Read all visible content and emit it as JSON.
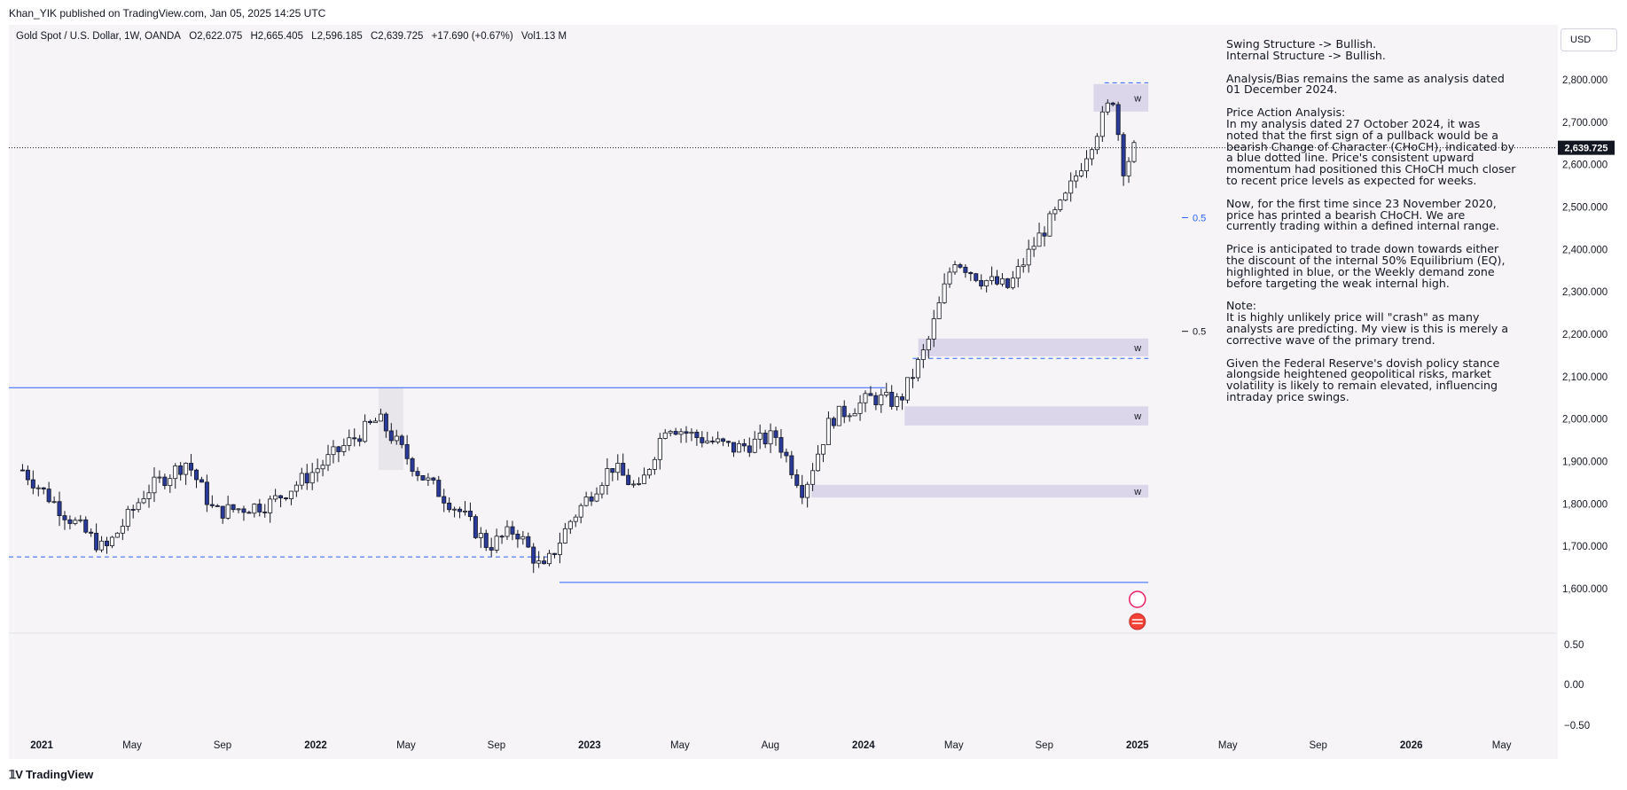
{
  "header": {
    "published": "Khan_YIK published on TradingView.com, Jan 05, 2025 14:25 UTC"
  },
  "symbol": {
    "name": "Gold Spot / U.S. Dollar, 1W, OANDA",
    "open": "O2,622.075",
    "high": "H2,665.405",
    "low": "L2,596.185",
    "close": "C2,639.725",
    "change": "+17.690 (+0.67%)",
    "volume": "Vol1.13 M"
  },
  "currency_button": "USD",
  "last_price_label": "2,639.725",
  "fib_labels": [
    "0.5",
    "0.5"
  ],
  "zone_label": "w",
  "notes": [
    "Swing Structure -> Bullish.\nInternal Structure -> Bullish.",
    "Analysis/Bias remains the same as analysis dated\n01 December 2024.",
    "Price Action Analysis:\nIn my analysis dated 27 October 2024, it was\nnoted that the first sign of a pullback would be a\nbearish Change of Character (CHoCH), indicated by\na blue dotted line. Price's consistent upward\nmomentum had positioned this CHoCH much closer\nto recent price levels as expected for weeks.",
    "Now, for the first time since 23 November 2020,\nprice has printed a bearish CHoCH. We are\ncurrently trading within a defined internal range.",
    "Price is anticipated to trade down towards either\nthe discount of the internal 50% Equilibrium (EQ),\nhighlighted in blue, or the Weekly demand zone\nbefore targeting the weak internal high.",
    "Note:\nIt is highly unlikely price will \"crash\" as many\nanalysts are predicting.  My view is this is merely a\ncorrective wave of the primary trend.",
    "Given the Federal Reserve's dovish policy stance\nalongside heightened geopolitical risks, market\nvolatility is likely to remain elevated, influencing\nintraday price swings."
  ],
  "footer": {
    "logo_text": "TradingView"
  },
  "colors": {
    "bull_candle": "#ffffff",
    "bear_candle": "#2a3a9b",
    "wick": "#131722",
    "structure_line": "#2962ff",
    "zone_fill": "#dcd6ea",
    "background": "#f6f4f6"
  },
  "chart_data": {
    "type": "candlestick",
    "title": "Gold Spot / U.S. Dollar, 1W, OANDA",
    "price_axis": {
      "ticks": [
        1600,
        1700,
        1800,
        1900,
        2000,
        2100,
        2200,
        2300,
        2400,
        2500,
        2600,
        2700,
        2800
      ],
      "tick_labels": [
        "1,600.000",
        "1,700.000",
        "1,800.000",
        "1,900.000",
        "2,000.000",
        "2,100.000",
        "2,200.000",
        "2,300.000",
        "2,400.000",
        "2,500.000",
        "2,600.000",
        "2,700.000",
        "2,800.000"
      ],
      "range": [
        1530,
        2850
      ]
    },
    "indicator_axis": {
      "ticks": [
        0.5,
        0.0,
        -0.5
      ],
      "tick_labels": [
        "0.50",
        "0.00",
        "−0.50"
      ]
    },
    "time_axis": {
      "labels": [
        {
          "text": "2021",
          "bold": true,
          "t": 0.92
        },
        {
          "text": "May",
          "bold": false,
          "t": 1.25
        },
        {
          "text": "Sep",
          "bold": false,
          "t": 1.58
        },
        {
          "text": "2022",
          "bold": true,
          "t": 1.92
        },
        {
          "text": "May",
          "bold": false,
          "t": 2.25
        },
        {
          "text": "Sep",
          "bold": false,
          "t": 2.58
        },
        {
          "text": "2023",
          "bold": true,
          "t": 2.92
        },
        {
          "text": "May",
          "bold": false,
          "t": 3.25
        },
        {
          "text": "Aug",
          "bold": false,
          "t": 3.58
        },
        {
          "text": "2024",
          "bold": true,
          "t": 3.92
        },
        {
          "text": "May",
          "bold": false,
          "t": 4.25
        },
        {
          "text": "Sep",
          "bold": false,
          "t": 4.58
        },
        {
          "text": "2025",
          "bold": true,
          "t": 4.92
        },
        {
          "text": "May",
          "bold": false,
          "t": 5.25
        },
        {
          "text": "Sep",
          "bold": false,
          "t": 5.58
        },
        {
          "text": "2026",
          "bold": true,
          "t": 5.92
        },
        {
          "text": "May",
          "bold": false,
          "t": 6.25
        }
      ]
    },
    "last_price": 2639.725,
    "key_points": [
      {
        "t": 0.85,
        "price": 1880
      },
      {
        "t": 1.0,
        "price": 1780
      },
      {
        "t": 1.15,
        "price": 1690
      },
      {
        "t": 1.3,
        "price": 1830
      },
      {
        "t": 1.45,
        "price": 1900
      },
      {
        "t": 1.55,
        "price": 1780
      },
      {
        "t": 1.75,
        "price": 1800
      },
      {
        "t": 1.9,
        "price": 1870
      },
      {
        "t": 2.05,
        "price": 1950
      },
      {
        "t": 2.15,
        "price": 2000
      },
      {
        "t": 2.3,
        "price": 1870
      },
      {
        "t": 2.45,
        "price": 1780
      },
      {
        "t": 2.55,
        "price": 1700
      },
      {
        "t": 2.65,
        "price": 1740
      },
      {
        "t": 2.75,
        "price": 1640
      },
      {
        "t": 2.85,
        "price": 1760
      },
      {
        "t": 3.0,
        "price": 1890
      },
      {
        "t": 3.1,
        "price": 1830
      },
      {
        "t": 3.2,
        "price": 1990
      },
      {
        "t": 3.3,
        "price": 1960
      },
      {
        "t": 3.45,
        "price": 1930
      },
      {
        "t": 3.6,
        "price": 1960
      },
      {
        "t": 3.7,
        "price": 1830
      },
      {
        "t": 3.8,
        "price": 2000
      },
      {
        "t": 3.95,
        "price": 2050
      },
      {
        "t": 4.05,
        "price": 2040
      },
      {
        "t": 4.15,
        "price": 2170
      },
      {
        "t": 4.25,
        "price": 2380
      },
      {
        "t": 4.35,
        "price": 2330
      },
      {
        "t": 4.45,
        "price": 2310
      },
      {
        "t": 4.55,
        "price": 2420
      },
      {
        "t": 4.65,
        "price": 2510
      },
      {
        "t": 4.75,
        "price": 2650
      },
      {
        "t": 4.83,
        "price": 2760
      },
      {
        "t": 4.87,
        "price": 2590
      },
      {
        "t": 4.91,
        "price": 2640
      }
    ],
    "zones": [
      {
        "label": "w",
        "t0": 4.76,
        "t1": 4.96,
        "p0": 2725,
        "p1": 2790
      },
      {
        "label": "w",
        "t0": 4.12,
        "t1": 4.96,
        "p0": 2148,
        "p1": 2190
      },
      {
        "label": "w",
        "t0": 4.07,
        "t1": 4.96,
        "p0": 1985,
        "p1": 2030
      },
      {
        "label": "w",
        "t0": 3.73,
        "t1": 4.96,
        "p0": 1815,
        "p1": 1845
      }
    ],
    "levels": [
      {
        "style": "solid",
        "price": 2074,
        "t0": 0.8,
        "t1": 4.0
      },
      {
        "style": "solid",
        "price": 1615,
        "t0": 2.81,
        "t1": 4.96
      },
      {
        "style": "dashed",
        "price": 1675,
        "t0": 0.8,
        "t1": 2.78
      },
      {
        "style": "dashed",
        "price": 2143,
        "t0": 4.1,
        "t1": 4.96
      },
      {
        "style": "dashed",
        "price": 2793,
        "t0": 4.8,
        "t1": 4.96
      }
    ],
    "fib_levels": [
      {
        "label": "0.5",
        "price": 2475
      },
      {
        "label": "0.5",
        "price": 2207
      }
    ]
  }
}
